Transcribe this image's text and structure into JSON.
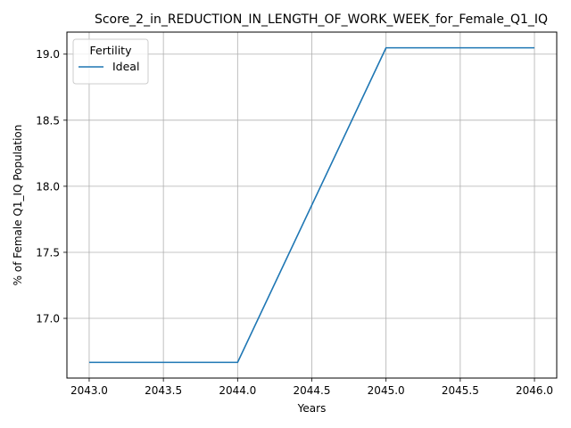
{
  "chart_data": {
    "type": "line",
    "title": "Score_2_in_REDUCTION_IN_LENGTH_OF_WORK_WEEK_for_Female_Q1_IQ",
    "xlabel": "Years",
    "ylabel": "% of Female Q1_IQ Population",
    "x": [
      2043,
      2044,
      2045,
      2046
    ],
    "series": [
      {
        "name": "Ideal",
        "values": [
          16.667,
          16.667,
          19.048,
          19.048
        ],
        "color": "#1f77b4"
      }
    ],
    "xlim": [
      2042.85,
      2046.15
    ],
    "ylim": [
      16.548,
      19.167
    ],
    "x_ticks": [
      2043.0,
      2043.5,
      2044.0,
      2044.5,
      2045.0,
      2045.5,
      2046.0
    ],
    "x_tick_labels": [
      "2043.0",
      "2043.5",
      "2044.0",
      "2044.5",
      "2045.0",
      "2045.5",
      "2046.0"
    ],
    "y_ticks": [
      17.0,
      17.5,
      18.0,
      18.5,
      19.0
    ],
    "y_tick_labels": [
      "17.0",
      "17.5",
      "18.0",
      "18.5",
      "19.0"
    ],
    "grid": true,
    "legend": {
      "title": "Fertility",
      "placement": "top-left"
    }
  }
}
